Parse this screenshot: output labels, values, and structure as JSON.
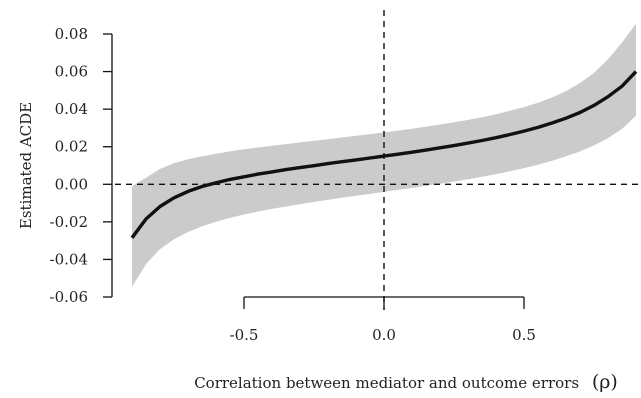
{
  "chart_data": {
    "type": "line",
    "title": "",
    "ylabel": "Estimated ACDE",
    "xlabel": "Correlation between mediator and outcome errors",
    "xlabel_symbol": "(ρ)",
    "xlim": [
      -0.9,
      0.9
    ],
    "ylim": [
      -0.06,
      0.08
    ],
    "x_ticks": [
      {
        "value": -0.5,
        "label": "-0.5"
      },
      {
        "value": 0.0,
        "label": "0.0"
      },
      {
        "value": 0.5,
        "label": "0.5"
      }
    ],
    "y_ticks": [
      {
        "value": -0.06,
        "label": "-0.06"
      },
      {
        "value": -0.04,
        "label": "-0.04"
      },
      {
        "value": -0.02,
        "label": "-0.02"
      },
      {
        "value": 0.0,
        "label": "0.00"
      },
      {
        "value": 0.02,
        "label": "0.02"
      },
      {
        "value": 0.04,
        "label": "0.04"
      },
      {
        "value": 0.06,
        "label": "0.06"
      },
      {
        "value": 0.08,
        "label": "0.08"
      }
    ],
    "reference_lines": {
      "horizontal_y": 0.0,
      "vertical_x": 0.0
    },
    "series": [
      {
        "x": [
          -0.9,
          -0.85,
          -0.8,
          -0.75,
          -0.7,
          -0.65,
          -0.6,
          -0.55,
          -0.5,
          -0.45,
          -0.4,
          -0.35,
          -0.3,
          -0.25,
          -0.2,
          -0.15,
          -0.1,
          -0.05,
          0.0,
          0.05,
          0.1,
          0.15,
          0.2,
          0.25,
          0.3,
          0.35,
          0.4,
          0.45,
          0.5,
          0.55,
          0.6,
          0.65,
          0.7,
          0.75,
          0.8,
          0.85,
          0.9
        ],
        "values": [
          -0.0285,
          -0.0185,
          -0.0118,
          -0.0072,
          -0.0038,
          -0.0012,
          0.0008,
          0.0026,
          0.004,
          0.0054,
          0.0066,
          0.0078,
          0.0089,
          0.0099,
          0.011,
          0.012,
          0.013,
          0.014,
          0.015,
          0.016,
          0.0171,
          0.0182,
          0.0194,
          0.0206,
          0.0219,
          0.0233,
          0.0248,
          0.0265,
          0.0283,
          0.0303,
          0.0326,
          0.0352,
          0.0382,
          0.042,
          0.0466,
          0.0522,
          0.06
        ],
        "lower": [
          -0.0545,
          -0.0425,
          -0.0345,
          -0.0293,
          -0.0254,
          -0.0224,
          -0.0199,
          -0.0179,
          -0.0161,
          -0.0145,
          -0.0131,
          -0.0118,
          -0.0106,
          -0.0094,
          -0.0083,
          -0.0072,
          -0.0061,
          -0.0051,
          -0.004,
          -0.003,
          -0.0019,
          -0.0008,
          0.0003,
          0.0015,
          0.0027,
          0.004,
          0.0054,
          0.0069,
          0.0086,
          0.0104,
          0.0125,
          0.0149,
          0.0175,
          0.0207,
          0.0246,
          0.0295,
          0.0365
        ],
        "upper": [
          -0.001,
          0.0035,
          0.0082,
          0.0112,
          0.0133,
          0.0149,
          0.0163,
          0.0175,
          0.0186,
          0.0196,
          0.0205,
          0.0214,
          0.0223,
          0.0232,
          0.024,
          0.0249,
          0.0258,
          0.0267,
          0.0276,
          0.0286,
          0.0296,
          0.0307,
          0.0318,
          0.033,
          0.0343,
          0.0357,
          0.0373,
          0.0391,
          0.0411,
          0.0434,
          0.0462,
          0.0496,
          0.0539,
          0.0593,
          0.0665,
          0.0755,
          0.0855
        ]
      }
    ],
    "grid": false,
    "legend": "none"
  }
}
